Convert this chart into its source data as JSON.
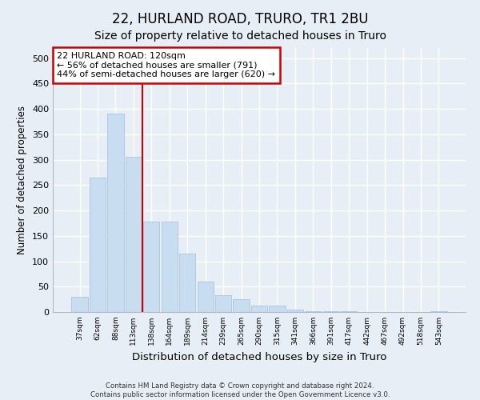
{
  "title": "22, HURLAND ROAD, TRURO, TR1 2BU",
  "subtitle": "Size of property relative to detached houses in Truro",
  "xlabel": "Distribution of detached houses by size in Truro",
  "ylabel": "Number of detached properties",
  "categories": [
    "37sqm",
    "62sqm",
    "88sqm",
    "113sqm",
    "138sqm",
    "164sqm",
    "189sqm",
    "214sqm",
    "239sqm",
    "265sqm",
    "290sqm",
    "315sqm",
    "341sqm",
    "366sqm",
    "391sqm",
    "417sqm",
    "442sqm",
    "467sqm",
    "492sqm",
    "518sqm",
    "543sqm"
  ],
  "values": [
    30,
    265,
    390,
    305,
    178,
    178,
    115,
    60,
    33,
    25,
    13,
    13,
    5,
    2,
    1,
    1,
    0,
    0,
    0,
    0,
    2
  ],
  "bar_color": "#c9ddf0",
  "bar_edge_color": "#aac4de",
  "vline_color": "#cc0000",
  "annotation_text": "22 HURLAND ROAD: 120sqm\n← 56% of detached houses are smaller (791)\n44% of semi-detached houses are larger (620) →",
  "annotation_box_color": "#ffffff",
  "annotation_box_edge": "#cc0000",
  "bg_color": "#e8eef5",
  "plot_bg_color": "#e8eef5",
  "ylim": [
    0,
    520
  ],
  "yticks": [
    0,
    50,
    100,
    150,
    200,
    250,
    300,
    350,
    400,
    450,
    500
  ],
  "footer": "Contains HM Land Registry data © Crown copyright and database right 2024.\nContains public sector information licensed under the Open Government Licence v3.0.",
  "title_fontsize": 12,
  "subtitle_fontsize": 10,
  "xlabel_fontsize": 9.5,
  "ylabel_fontsize": 8.5
}
